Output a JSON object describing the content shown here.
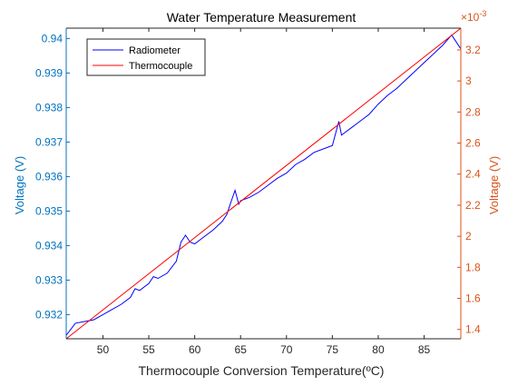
{
  "chart_data": {
    "type": "line",
    "title": "Water Temperature Measurement",
    "xlabel": "Thermocouple Conversion Temperature(ºC)",
    "ylabel_left": "Voltage (V)",
    "ylabel_right": "Voltage (V)",
    "right_exponent": "×10",
    "right_exponent_power": "-3",
    "xlim": [
      46,
      89
    ],
    "ylim_left": [
      0.9313,
      0.9403
    ],
    "ylim_right": [
      1.34,
      3.34
    ],
    "xticks": [
      "50",
      "55",
      "60",
      "65",
      "70",
      "75",
      "80",
      "85"
    ],
    "xtick_values": [
      50,
      55,
      60,
      65,
      70,
      75,
      80,
      85
    ],
    "yticks_left": [
      "0.932",
      "0.933",
      "0.934",
      "0.935",
      "0.936",
      "0.937",
      "0.938",
      "0.939",
      "0.94"
    ],
    "ytick_values_left": [
      0.932,
      0.933,
      0.934,
      0.935,
      0.936,
      0.937,
      0.938,
      0.939,
      0.94
    ],
    "yticks_right": [
      "1.4",
      "1.6",
      "1.8",
      "2",
      "2.2",
      "2.4",
      "2.6",
      "2.8",
      "3",
      "3.2"
    ],
    "ytick_values_right": [
      1.4,
      1.6,
      1.8,
      2.0,
      2.2,
      2.4,
      2.6,
      2.8,
      3.0,
      3.2
    ],
    "grid": false,
    "legend_position": "top-left",
    "series": [
      {
        "name": "Radiometer",
        "color": "#0000ff",
        "axis": "left",
        "x": [
          46,
          47,
          48,
          49,
          50,
          51,
          52,
          53,
          53.5,
          54,
          55,
          55.5,
          56,
          57,
          58,
          58.5,
          59,
          59.5,
          60,
          61,
          62,
          63,
          63.5,
          64,
          64.4,
          64.8,
          65,
          66,
          67,
          68,
          69,
          70,
          71,
          72,
          73,
          74,
          75,
          75.7,
          76,
          77,
          78,
          79,
          80,
          81,
          82,
          83,
          84,
          85,
          86,
          87,
          88,
          89
        ],
        "y": [
          0.9314,
          0.93175,
          0.9318,
          0.93185,
          0.932,
          0.93215,
          0.9323,
          0.9325,
          0.93275,
          0.9327,
          0.9329,
          0.9331,
          0.93305,
          0.9332,
          0.93355,
          0.9341,
          0.9343,
          0.9341,
          0.93405,
          0.93425,
          0.93445,
          0.9347,
          0.9349,
          0.9353,
          0.9356,
          0.9352,
          0.9353,
          0.9354,
          0.93555,
          0.93575,
          0.93595,
          0.9361,
          0.93635,
          0.9365,
          0.9367,
          0.9368,
          0.9369,
          0.9376,
          0.9372,
          0.9374,
          0.9376,
          0.9378,
          0.9381,
          0.93835,
          0.93855,
          0.9388,
          0.93905,
          0.9393,
          0.93955,
          0.9398,
          0.9401,
          0.9397
        ]
      },
      {
        "name": "Thermocouple",
        "color": "#ff0000",
        "axis": "right",
        "x": [
          46,
          89
        ],
        "y": [
          1.34,
          3.34
        ]
      }
    ]
  },
  "colors": {
    "left_axis": "#0072bd",
    "right_axis": "#d95319",
    "axis_box": "#262626"
  }
}
